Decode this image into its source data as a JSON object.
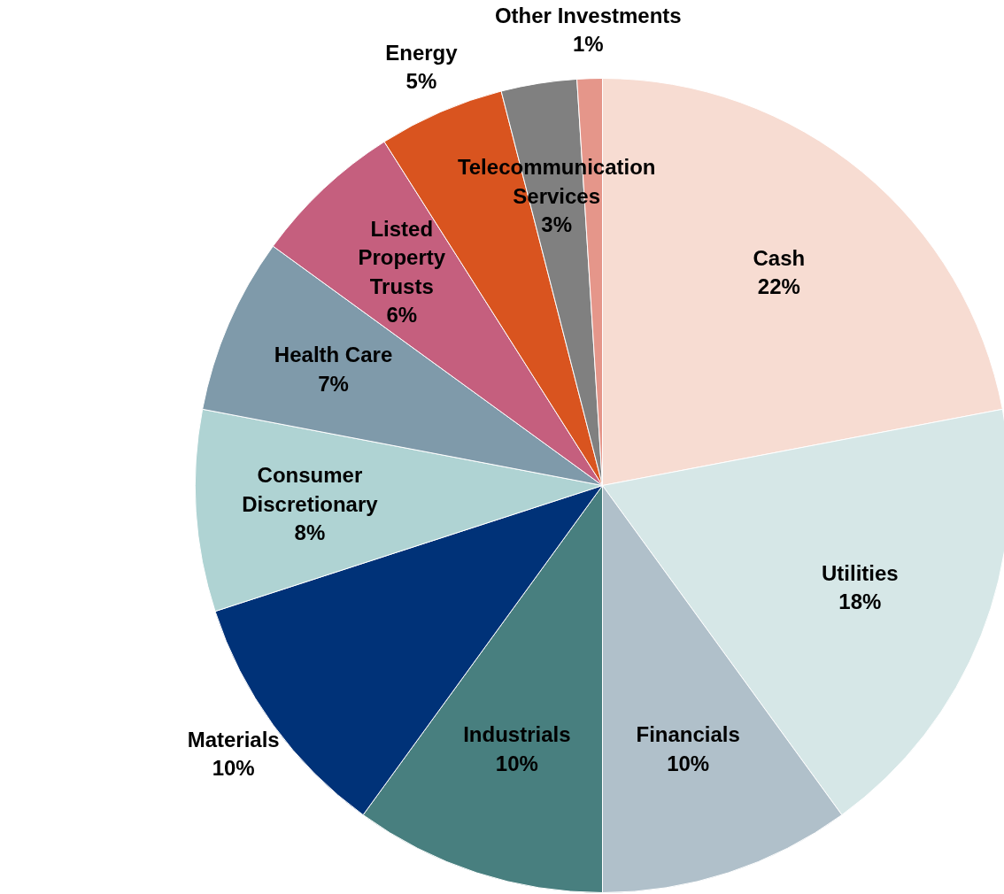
{
  "chart_data": {
    "type": "pie",
    "categories": [
      "Cash",
      "Utilities",
      "Financials",
      "Industrials",
      "Materials",
      "Consumer Discretionary",
      "Health Care",
      "Listed Property Trusts",
      "Energy",
      "Telecommunication Services",
      "Other Investments"
    ],
    "values": [
      22,
      18,
      10,
      10,
      10,
      8,
      7,
      6,
      5,
      3,
      1
    ],
    "value_labels": [
      "22%",
      "18%",
      "10%",
      "10%",
      "10%",
      "8%",
      "7%",
      "6%",
      "5%",
      "3%",
      "1%"
    ],
    "colors": [
      "#f7dcd2",
      "#d6e7e7",
      "#b0c0ca",
      "#487f7f",
      "#003278",
      "#afd3d3",
      "#7f9aaa",
      "#c55f7e",
      "#d9541f",
      "#808080",
      "#e5968a"
    ]
  }
}
